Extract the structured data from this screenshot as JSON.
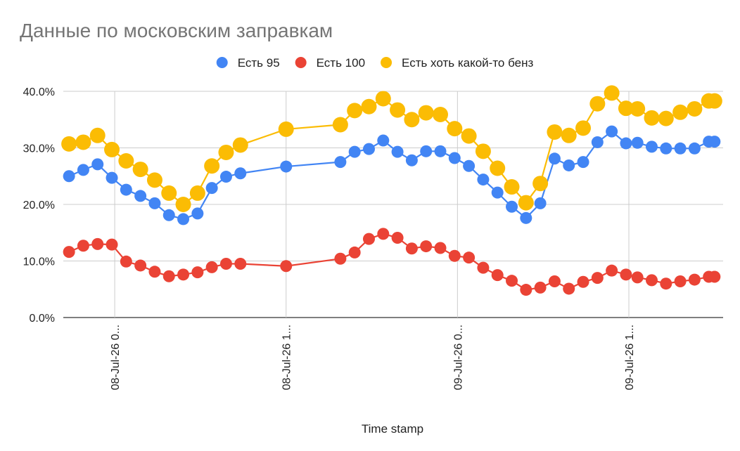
{
  "chart_data": {
    "type": "line",
    "title": "Данные по московским заправкам",
    "xlabel": "Time stamp",
    "ylabel": "",
    "ylim": [
      0,
      40
    ],
    "y_ticks": [
      0,
      10,
      20,
      30,
      40
    ],
    "y_tick_labels": [
      "0.0%",
      "10.0%",
      "20.0%",
      "30.0%",
      "40.0%"
    ],
    "x_ticks": [
      {
        "x": 3.2,
        "label": "08-Jul-26 0..."
      },
      {
        "x": 15.2,
        "label": "08-Jul-26 1..."
      },
      {
        "x": 27.2,
        "label": "09-Jul-26 0..."
      },
      {
        "x": 39.2,
        "label": "09-Jul-26 1..."
      }
    ],
    "xlim": [
      -0.4,
      45.8
    ],
    "legend_position": "top",
    "grid": true,
    "x": [
      0,
      1,
      2,
      3,
      4,
      5,
      6,
      7,
      8,
      9,
      10,
      11,
      12,
      15.2,
      19,
      20,
      21,
      22,
      23,
      24,
      25,
      26,
      27,
      28,
      29,
      30,
      31,
      32,
      33,
      34,
      35,
      36,
      37,
      38,
      39,
      39.8,
      40.8,
      41.8,
      42.8,
      43.8,
      44.8,
      45.2
    ],
    "series": [
      {
        "name": "Есть 95",
        "color": "#4285f4",
        "values": [
          25.0,
          26.1,
          27.1,
          24.7,
          22.6,
          21.5,
          20.2,
          18.1,
          17.4,
          18.4,
          22.9,
          24.9,
          25.5,
          26.7,
          27.5,
          29.3,
          29.8,
          31.3,
          29.3,
          27.8,
          29.4,
          29.4,
          28.2,
          26.8,
          24.4,
          22.1,
          19.6,
          17.6,
          20.2,
          28.1,
          26.9,
          27.5,
          31.0,
          32.9,
          30.8,
          30.9,
          30.2,
          29.9,
          29.9,
          29.9,
          31.1,
          31.1
        ],
        "marker_size": "medium"
      },
      {
        "name": "Есть 100",
        "color": "#ea4335",
        "values": [
          11.6,
          12.7,
          13.0,
          12.9,
          9.9,
          9.2,
          8.1,
          7.3,
          7.6,
          8.0,
          8.9,
          9.5,
          9.5,
          9.1,
          10.4,
          11.5,
          13.9,
          14.8,
          14.1,
          12.2,
          12.6,
          12.3,
          10.9,
          10.6,
          8.8,
          7.5,
          6.5,
          4.9,
          5.3,
          6.4,
          5.1,
          6.3,
          7.0,
          8.3,
          7.6,
          7.1,
          6.6,
          6.0,
          6.4,
          6.7,
          7.2,
          7.2
        ],
        "marker_size": "medium"
      },
      {
        "name": "Есть хоть какой-то бенз",
        "color": "#fbbc04",
        "values": [
          30.7,
          31.0,
          32.2,
          29.7,
          27.7,
          26.2,
          24.3,
          22.0,
          20.0,
          22.0,
          26.8,
          29.2,
          30.5,
          33.3,
          34.1,
          36.6,
          37.3,
          38.7,
          36.7,
          35.0,
          36.2,
          35.9,
          33.4,
          32.1,
          29.4,
          26.4,
          23.1,
          20.3,
          23.7,
          32.8,
          32.2,
          33.5,
          37.8,
          39.7,
          37.0,
          36.9,
          35.3,
          35.2,
          36.3,
          36.9,
          38.3,
          38.3
        ],
        "marker_size": "large"
      }
    ]
  }
}
